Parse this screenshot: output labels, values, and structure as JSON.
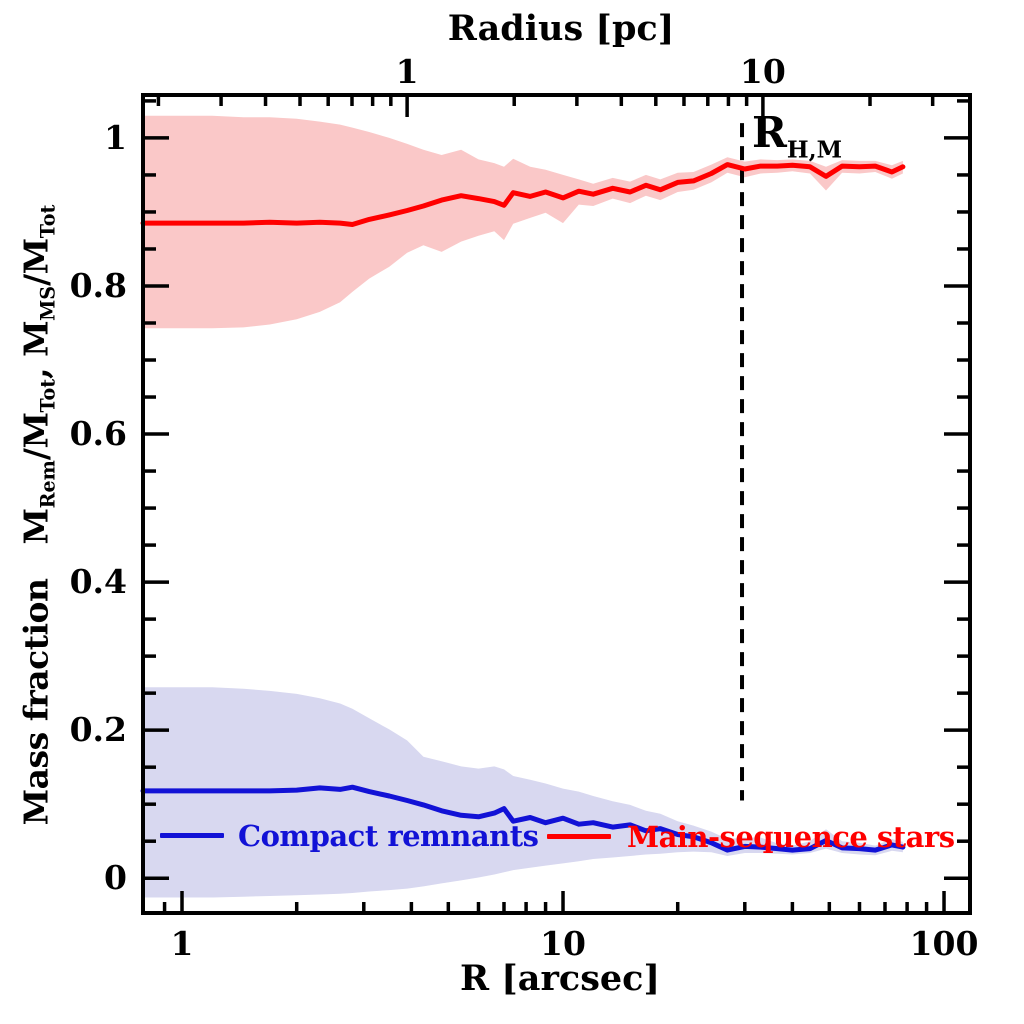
{
  "page": {
    "background": "#ffffff",
    "frame_color": "#000000"
  },
  "figure": {
    "top_axis_title": "Radius [pc]",
    "bottom_axis_title": "R [arcsec]",
    "y_axis_title_text": "Mass fraction",
    "y_axis_title_math": [
      {
        "t": "M"
      },
      {
        "s": "Rem"
      },
      {
        "t": "/M"
      },
      {
        "s": "Tot"
      },
      {
        "t": ", M"
      },
      {
        "s": "MS"
      },
      {
        "t": "/M"
      },
      {
        "s": "Tot"
      }
    ]
  },
  "legend": {
    "entries": [
      {
        "label": "Compact remnants",
        "color": "#1212d6"
      },
      {
        "label": "Main-sequence stars",
        "color": "#ff0000"
      }
    ]
  },
  "chart_data": {
    "type": "line",
    "title": "",
    "xlabel": "R [arcsec]",
    "xlabel_top": "Radius [pc]",
    "ylabel": "Mass fraction  M_Rem/M_Tot, M_MS/M_Tot",
    "grid": false,
    "x_axis_bottom": {
      "scale": "log",
      "min": 0.79,
      "max": 117,
      "major_ticks": [
        1,
        10,
        100
      ],
      "major_tick_labels": [
        "1",
        "10",
        "100"
      ],
      "minor_ticks": [
        0.9,
        2,
        3,
        4,
        5,
        6,
        7,
        8,
        9,
        20,
        30,
        40,
        50,
        60,
        70,
        80,
        90
      ]
    },
    "x_axis_top": {
      "scale": "log",
      "min": 0.181,
      "max": 38.2,
      "major_ticks": [
        1,
        10
      ],
      "major_tick_labels": [
        "1",
        "10"
      ],
      "minor_ticks": [
        0.2,
        0.3,
        0.4,
        0.5,
        0.6,
        0.7,
        0.8,
        0.9,
        2,
        3,
        4,
        5,
        6,
        7,
        8,
        9,
        20,
        30
      ]
    },
    "y_axis": {
      "scale": "linear",
      "min": -0.047,
      "max": 1.058,
      "major_ticks": [
        0,
        0.2,
        0.4,
        0.6,
        0.8,
        1
      ],
      "major_tick_labels": [
        "0",
        "0.2",
        "0.4",
        "0.6",
        "0.8",
        "1"
      ],
      "minor_ticks": [
        0.05,
        0.1,
        0.15,
        0.25,
        0.3,
        0.35,
        0.45,
        0.5,
        0.55,
        0.65,
        0.7,
        0.75,
        0.85,
        0.9,
        0.95,
        1.05
      ]
    },
    "x_arcsec": [
      0.79,
      1.0,
      1.2,
      1.45,
      1.7,
      2.0,
      2.3,
      2.6,
      2.8,
      3.1,
      3.5,
      3.9,
      4.3,
      4.8,
      5.4,
      6.0,
      6.6,
      7.0,
      7.4,
      8.2,
      9.0,
      10.0,
      11.0,
      12.0,
      13.5,
      15.0,
      16.5,
      18.0,
      20.0,
      22.0,
      24.5,
      27.0,
      30.0,
      33.0,
      36.5,
      40.0,
      44.5,
      49.0,
      54.0,
      60.0,
      66.0,
      73.0,
      78.0
    ],
    "series": [
      {
        "name": "Main-sequence stars",
        "color": "#ff0000",
        "band_color": "#fac8c8",
        "values": [
          0.885,
          0.885,
          0.885,
          0.885,
          0.886,
          0.885,
          0.886,
          0.885,
          0.883,
          0.89,
          0.896,
          0.902,
          0.908,
          0.916,
          0.922,
          0.918,
          0.914,
          0.909,
          0.926,
          0.921,
          0.927,
          0.919,
          0.928,
          0.924,
          0.932,
          0.927,
          0.936,
          0.93,
          0.94,
          0.942,
          0.952,
          0.964,
          0.958,
          0.962,
          0.962,
          0.963,
          0.961,
          0.948,
          0.962,
          0.961,
          0.962,
          0.954,
          0.961
        ],
        "band_upper": [
          1.03,
          1.03,
          1.03,
          1.028,
          1.028,
          1.026,
          1.022,
          1.018,
          1.014,
          1.008,
          1.0,
          0.992,
          0.984,
          0.977,
          0.984,
          0.971,
          0.966,
          0.961,
          0.972,
          0.961,
          0.957,
          0.95,
          0.944,
          0.938,
          0.946,
          0.941,
          0.95,
          0.944,
          0.953,
          0.954,
          0.964,
          0.974,
          0.968,
          0.971,
          0.97,
          0.971,
          0.969,
          0.961,
          0.97,
          0.969,
          0.969,
          0.963,
          0.969
        ],
        "band_lower": [
          0.743,
          0.743,
          0.743,
          0.744,
          0.748,
          0.755,
          0.765,
          0.778,
          0.792,
          0.81,
          0.826,
          0.845,
          0.855,
          0.846,
          0.86,
          0.868,
          0.874,
          0.862,
          0.884,
          0.892,
          0.899,
          0.885,
          0.91,
          0.908,
          0.918,
          0.912,
          0.922,
          0.916,
          0.927,
          0.93,
          0.94,
          0.953,
          0.947,
          0.952,
          0.953,
          0.955,
          0.952,
          0.929,
          0.953,
          0.952,
          0.954,
          0.945,
          0.952
        ]
      },
      {
        "name": "Compact remnants",
        "color": "#1212d6",
        "band_color": "#d8d8f0",
        "values": [
          0.118,
          0.118,
          0.118,
          0.118,
          0.118,
          0.119,
          0.122,
          0.12,
          0.123,
          0.117,
          0.111,
          0.105,
          0.099,
          0.091,
          0.085,
          0.083,
          0.088,
          0.094,
          0.077,
          0.082,
          0.075,
          0.081,
          0.073,
          0.075,
          0.069,
          0.072,
          0.064,
          0.067,
          0.059,
          0.056,
          0.048,
          0.038,
          0.043,
          0.042,
          0.04,
          0.038,
          0.04,
          0.051,
          0.041,
          0.04,
          0.038,
          0.045,
          0.042
        ],
        "band_upper": [
          0.258,
          0.258,
          0.258,
          0.256,
          0.253,
          0.249,
          0.243,
          0.236,
          0.229,
          0.216,
          0.201,
          0.186,
          0.164,
          0.158,
          0.151,
          0.148,
          0.151,
          0.147,
          0.138,
          0.133,
          0.128,
          0.121,
          0.117,
          0.111,
          0.104,
          0.099,
          0.091,
          0.087,
          0.077,
          0.071,
          0.063,
          0.053,
          0.055,
          0.055,
          0.047,
          0.044,
          0.05,
          0.066,
          0.05,
          0.048,
          0.044,
          0.053,
          0.049
        ],
        "band_lower": [
          -0.026,
          -0.026,
          -0.026,
          -0.025,
          -0.024,
          -0.023,
          -0.022,
          -0.021,
          -0.02,
          -0.018,
          -0.016,
          -0.014,
          -0.011,
          -0.007,
          -0.003,
          0.001,
          0.005,
          0.008,
          0.011,
          0.014,
          0.017,
          0.02,
          0.023,
          0.026,
          0.028,
          0.03,
          0.032,
          0.033,
          0.035,
          0.036,
          0.035,
          0.03,
          0.034,
          0.034,
          0.033,
          0.032,
          0.034,
          0.04,
          0.034,
          0.032,
          0.031,
          0.037,
          0.035
        ]
      }
    ],
    "annotations": {
      "half_mass_radius": {
        "x_arcsec": 29.5,
        "label_parts": [
          {
            "t": "R"
          },
          {
            "s": "H,M"
          }
        ],
        "line_style": "dashed",
        "color": "#000000",
        "y_top": 1.02,
        "y_bottom": 0.105
      }
    }
  }
}
